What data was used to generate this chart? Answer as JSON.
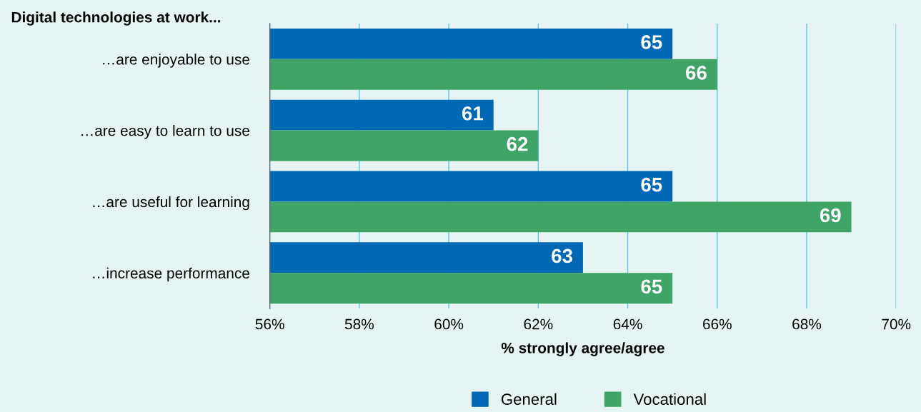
{
  "chart_data": {
    "type": "bar",
    "orientation": "horizontal",
    "ylabel": "Digital technologies at work...",
    "xlabel": "% strongly agree/agree",
    "categories": [
      "…are enjoyable to use",
      "…are easy to learn to use",
      "…are useful for learning",
      "…increase performance"
    ],
    "series": [
      {
        "name": "General",
        "color": "#0068b4",
        "values": [
          65,
          61,
          65,
          63
        ]
      },
      {
        "name": "Vocational",
        "color": "#3ea566",
        "values": [
          66,
          62,
          69,
          65
        ]
      }
    ],
    "xlim": [
      56,
      70
    ],
    "xticks": [
      {
        "value": 56,
        "label": "56%"
      },
      {
        "value": 58,
        "label": "58%"
      },
      {
        "value": 60,
        "label": "60%"
      },
      {
        "value": 62,
        "label": "62%"
      },
      {
        "value": 64,
        "label": "64%"
      },
      {
        "value": 66,
        "label": "66%"
      },
      {
        "value": 68,
        "label": "68%"
      },
      {
        "value": 70,
        "label": "70%"
      }
    ],
    "grid": "x",
    "legend": "bottom",
    "data_labels": true
  }
}
